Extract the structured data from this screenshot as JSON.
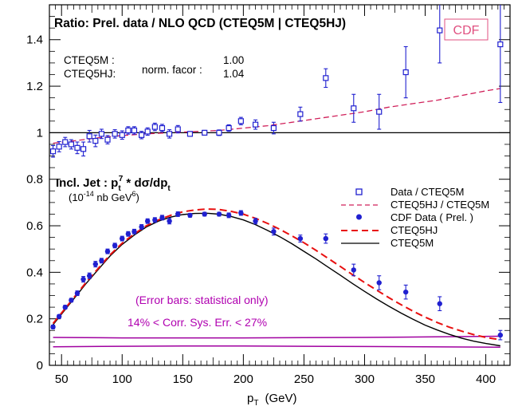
{
  "chart_data": {
    "type": "scatter",
    "title": "Ratio: Prel. data / NLO QCD (CTEQ5M | CTEQ5HJ)",
    "xlabel_main": "p",
    "xlabel_sub": "T",
    "xlabel_unit": "(GeV)",
    "xlim": [
      40,
      420
    ],
    "ylim": [
      0,
      1.55
    ],
    "xticks": [
      50,
      100,
      150,
      200,
      250,
      300,
      350,
      400
    ],
    "yticks": [
      0,
      0.2,
      0.4,
      0.6,
      0.8,
      1,
      1.2,
      1.4
    ],
    "cdf_label": "CDF",
    "norm": {
      "names": [
        "CTEQ5M :",
        "CTEQ5HJ:"
      ],
      "label": "norm. facor :",
      "values": [
        "1.00",
        "1.04"
      ]
    },
    "lower_title": {
      "prefix": "Incl. Jet  : p",
      "sub_t1": "t",
      "sup_7": "7",
      "mid": " * dσ/dp",
      "sub_t2": "t"
    },
    "units": {
      "prefix": "(10",
      "exp1": "-14",
      "mid": " nb GeV",
      "exp2": "6",
      "suffix": ")"
    },
    "legend": [
      {
        "label": "Data / CTEQ5M",
        "marker": "open-square",
        "color": "#2020d0"
      },
      {
        "label": "CTEQ5HJ / CTEQ5M",
        "marker": "dashed-line",
        "color": "#d0205a"
      },
      {
        "label": "CDF Data ( Prel. )",
        "marker": "filled-circle",
        "color": "#2020d0"
      },
      {
        "label": "CTEQ5HJ",
        "marker": "dashed-line-thick",
        "color": "#e81010"
      },
      {
        "label": "CTEQ5M",
        "marker": "solid-line",
        "color": "#000000"
      }
    ],
    "annotations": [
      "(Error bars: statistical only)",
      "14% < Corr. Sys. Err. < 27%"
    ],
    "colors": {
      "data": "#2020d0",
      "ratio_curve": "#d0205a",
      "cteq5hj": "#e81010",
      "cteq5m": "#000000",
      "syst_band": "#a000a0",
      "annotation": "#b000b0",
      "cdf_box": "#e05080"
    },
    "ratio_data": [
      {
        "x": 43,
        "y": 0.92,
        "err": 0.025
      },
      {
        "x": 48,
        "y": 0.94,
        "err": 0.022
      },
      {
        "x": 53,
        "y": 0.96,
        "err": 0.02
      },
      {
        "x": 58,
        "y": 0.95,
        "err": 0.02
      },
      {
        "x": 63,
        "y": 0.935,
        "err": 0.025
      },
      {
        "x": 68,
        "y": 0.93,
        "err": 0.03
      },
      {
        "x": 73,
        "y": 0.985,
        "err": 0.025
      },
      {
        "x": 78,
        "y": 0.965,
        "err": 0.025
      },
      {
        "x": 83,
        "y": 0.995,
        "err": 0.02
      },
      {
        "x": 88,
        "y": 0.97,
        "err": 0.018
      },
      {
        "x": 94,
        "y": 0.995,
        "err": 0.018
      },
      {
        "x": 100,
        "y": 0.99,
        "err": 0.018
      },
      {
        "x": 105,
        "y": 1.01,
        "err": 0.016
      },
      {
        "x": 110,
        "y": 1.01,
        "err": 0.016
      },
      {
        "x": 116,
        "y": 0.99,
        "err": 0.016
      },
      {
        "x": 121,
        "y": 1.005,
        "err": 0.016
      },
      {
        "x": 127,
        "y": 1.025,
        "err": 0.016
      },
      {
        "x": 133,
        "y": 1.02,
        "err": 0.016
      },
      {
        "x": 139,
        "y": 0.995,
        "err": 0.018
      },
      {
        "x": 146,
        "y": 1.015,
        "err": 0.016
      },
      {
        "x": 156,
        "y": 0.995,
        "err": 0.01
      },
      {
        "x": 168,
        "y": 1.0,
        "err": 0.01
      },
      {
        "x": 180,
        "y": 1.0,
        "err": 0.012
      },
      {
        "x": 188,
        "y": 1.02,
        "err": 0.014
      },
      {
        "x": 198,
        "y": 1.05,
        "err": 0.016
      },
      {
        "x": 210,
        "y": 1.035,
        "err": 0.02
      },
      {
        "x": 225,
        "y": 1.02,
        "err": 0.025
      },
      {
        "x": 247,
        "y": 1.08,
        "err": 0.03
      },
      {
        "x": 268,
        "y": 1.235,
        "err": 0.04
      },
      {
        "x": 291,
        "y": 1.105,
        "err": 0.06
      },
      {
        "x": 312,
        "y": 1.09,
        "err": 0.075
      },
      {
        "x": 334,
        "y": 1.26,
        "err": 0.11
      },
      {
        "x": 362,
        "y": 1.44,
        "err": 0.14
      },
      {
        "x": 412,
        "y": 1.38,
        "err": 0.25
      }
    ],
    "ratio_curve": {
      "x": [
        43,
        60,
        80,
        100,
        120,
        140,
        160,
        180,
        200,
        220,
        240,
        260,
        280,
        300,
        320,
        340,
        360,
        380,
        400,
        412
      ],
      "y": [
        0.955,
        0.965,
        0.978,
        0.988,
        0.995,
        1.0,
        1.005,
        1.01,
        1.02,
        1.03,
        1.045,
        1.06,
        1.075,
        1.09,
        1.11,
        1.125,
        1.14,
        1.16,
        1.18,
        1.19
      ]
    },
    "ratio_reference_y": 1.0,
    "jet_data": [
      {
        "x": 43,
        "y": 0.165,
        "err": 0.008
      },
      {
        "x": 48,
        "y": 0.21,
        "err": 0.008
      },
      {
        "x": 53,
        "y": 0.25,
        "err": 0.008
      },
      {
        "x": 58,
        "y": 0.28,
        "err": 0.008
      },
      {
        "x": 63,
        "y": 0.31,
        "err": 0.01
      },
      {
        "x": 68,
        "y": 0.37,
        "err": 0.012
      },
      {
        "x": 73,
        "y": 0.385,
        "err": 0.012
      },
      {
        "x": 78,
        "y": 0.435,
        "err": 0.012
      },
      {
        "x": 83,
        "y": 0.45,
        "err": 0.01
      },
      {
        "x": 88,
        "y": 0.49,
        "err": 0.01
      },
      {
        "x": 94,
        "y": 0.515,
        "err": 0.01
      },
      {
        "x": 100,
        "y": 0.545,
        "err": 0.01
      },
      {
        "x": 105,
        "y": 0.565,
        "err": 0.01
      },
      {
        "x": 110,
        "y": 0.575,
        "err": 0.01
      },
      {
        "x": 116,
        "y": 0.595,
        "err": 0.01
      },
      {
        "x": 121,
        "y": 0.62,
        "err": 0.01
      },
      {
        "x": 127,
        "y": 0.625,
        "err": 0.01
      },
      {
        "x": 133,
        "y": 0.635,
        "err": 0.01
      },
      {
        "x": 139,
        "y": 0.62,
        "err": 0.012
      },
      {
        "x": 146,
        "y": 0.65,
        "err": 0.01
      },
      {
        "x": 156,
        "y": 0.645,
        "err": 0.008
      },
      {
        "x": 168,
        "y": 0.65,
        "err": 0.008
      },
      {
        "x": 180,
        "y": 0.65,
        "err": 0.008
      },
      {
        "x": 188,
        "y": 0.645,
        "err": 0.01
      },
      {
        "x": 198,
        "y": 0.655,
        "err": 0.01
      },
      {
        "x": 210,
        "y": 0.62,
        "err": 0.012
      },
      {
        "x": 225,
        "y": 0.575,
        "err": 0.015
      },
      {
        "x": 247,
        "y": 0.545,
        "err": 0.015
      },
      {
        "x": 268,
        "y": 0.545,
        "err": 0.02
      },
      {
        "x": 291,
        "y": 0.41,
        "err": 0.025
      },
      {
        "x": 312,
        "y": 0.355,
        "err": 0.03
      },
      {
        "x": 334,
        "y": 0.315,
        "err": 0.03
      },
      {
        "x": 362,
        "y": 0.265,
        "err": 0.03
      },
      {
        "x": 412,
        "y": 0.13,
        "err": 0.02
      }
    ],
    "cteq5hj_curve": {
      "x": [
        43,
        50,
        60,
        70,
        80,
        90,
        100,
        110,
        120,
        130,
        140,
        150,
        160,
        170,
        180,
        190,
        200,
        210,
        220,
        230,
        240,
        250,
        260,
        270,
        280,
        290,
        300,
        310,
        320,
        330,
        340,
        350,
        360,
        370,
        380,
        390,
        400,
        412
      ],
      "y": [
        0.18,
        0.225,
        0.29,
        0.355,
        0.415,
        0.475,
        0.525,
        0.565,
        0.6,
        0.625,
        0.645,
        0.66,
        0.668,
        0.672,
        0.67,
        0.662,
        0.65,
        0.632,
        0.61,
        0.585,
        0.557,
        0.527,
        0.494,
        0.46,
        0.425,
        0.39,
        0.356,
        0.323,
        0.291,
        0.261,
        0.233,
        0.207,
        0.184,
        0.164,
        0.147,
        0.132,
        0.12,
        0.11
      ]
    },
    "cteq5m_curve": {
      "x": [
        43,
        50,
        60,
        70,
        80,
        90,
        100,
        110,
        120,
        130,
        140,
        150,
        160,
        170,
        180,
        190,
        200,
        210,
        220,
        230,
        240,
        250,
        260,
        270,
        280,
        290,
        300,
        310,
        320,
        330,
        340,
        350,
        360,
        370,
        380,
        390,
        400,
        412
      ],
      "y": [
        0.175,
        0.22,
        0.285,
        0.35,
        0.41,
        0.47,
        0.52,
        0.56,
        0.595,
        0.62,
        0.637,
        0.648,
        0.653,
        0.654,
        0.65,
        0.64,
        0.625,
        0.605,
        0.58,
        0.553,
        0.523,
        0.49,
        0.457,
        0.422,
        0.387,
        0.352,
        0.318,
        0.285,
        0.254,
        0.225,
        0.198,
        0.173,
        0.152,
        0.133,
        0.117,
        0.104,
        0.094,
        0.084
      ]
    },
    "syst_band_upper": {
      "x": [
        43,
        100,
        150,
        200,
        250,
        300,
        350,
        412
      ],
      "y": [
        0.12,
        0.118,
        0.118,
        0.118,
        0.119,
        0.12,
        0.122,
        0.125
      ]
    },
    "syst_band_lower": {
      "x": [
        43,
        100,
        150,
        200,
        250,
        300,
        350,
        412
      ],
      "y": [
        0.08,
        0.082,
        0.083,
        0.083,
        0.082,
        0.081,
        0.08,
        0.078
      ]
    }
  }
}
